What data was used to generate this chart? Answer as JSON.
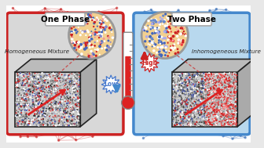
{
  "left_bg_color": "#d8d8d8",
  "right_bg_color": "#b8d8ee",
  "left_border_color": "#cc2222",
  "right_border_color": "#4488cc",
  "title_left": "One Phase",
  "title_right": "Two Phase",
  "label_left": "Homogeneous Mixture",
  "label_right": "Inhomogeneous Mixture",
  "label_low": "Low",
  "label_high": "High",
  "fig_width": 3.36,
  "fig_height": 1.89,
  "dpi": 100,
  "outer_bg": "#e8e8e8"
}
